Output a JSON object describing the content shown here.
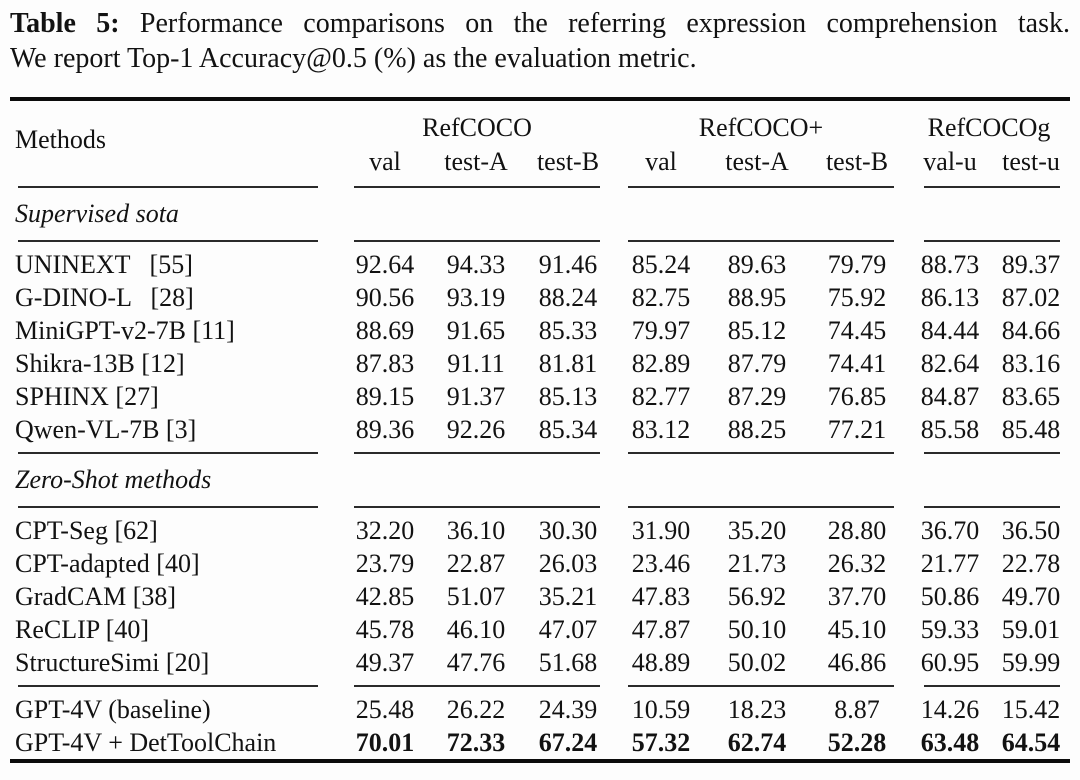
{
  "caption": {
    "label": "Table 5:",
    "line1": "Performance comparisons on the referring expression comprehension task.",
    "line2": "We report Top-1 Accuracy@0.5 (%) as the evaluation metric."
  },
  "table": {
    "methods_header": "Methods",
    "groups": [
      {
        "label": "RefCOCO",
        "cols": [
          "val",
          "test-A",
          "test-B"
        ]
      },
      {
        "label": "RefCOCO+",
        "cols": [
          "val",
          "test-A",
          "test-B"
        ]
      },
      {
        "label": "RefCOCOg",
        "cols": [
          "val-u",
          "test-u"
        ]
      }
    ],
    "sections": [
      {
        "label": "Supervised sota",
        "rows": [
          {
            "method": "UNINEXT  [55]",
            "values": [
              "92.64",
              "94.33",
              "91.46",
              "85.24",
              "89.63",
              "79.79",
              "88.73",
              "89.37"
            ]
          },
          {
            "method": "G-DINO-L  [28]",
            "values": [
              "90.56",
              "93.19",
              "88.24",
              "82.75",
              "88.95",
              "75.92",
              "86.13",
              "87.02"
            ]
          },
          {
            "method": "MiniGPT-v2-7B [11]",
            "values": [
              "88.69",
              "91.65",
              "85.33",
              "79.97",
              "85.12",
              "74.45",
              "84.44",
              "84.66"
            ]
          },
          {
            "method": "Shikra-13B [12]",
            "values": [
              "87.83",
              "91.11",
              "81.81",
              "82.89",
              "87.79",
              "74.41",
              "82.64",
              "83.16"
            ]
          },
          {
            "method": "SPHINX [27]",
            "values": [
              "89.15",
              "91.37",
              "85.13",
              "82.77",
              "87.29",
              "76.85",
              "84.87",
              "83.65"
            ]
          },
          {
            "method": "Qwen-VL-7B [3]",
            "values": [
              "89.36",
              "92.26",
              "85.34",
              "83.12",
              "88.25",
              "77.21",
              "85.58",
              "85.48"
            ]
          }
        ]
      },
      {
        "label": "Zero-Shot methods",
        "rows": [
          {
            "method": "CPT-Seg [62]",
            "values": [
              "32.20",
              "36.10",
              "30.30",
              "31.90",
              "35.20",
              "28.80",
              "36.70",
              "36.50"
            ]
          },
          {
            "method": "CPT-adapted [40]",
            "values": [
              "23.79",
              "22.87",
              "26.03",
              "23.46",
              "21.73",
              "26.32",
              "21.77",
              "22.78"
            ]
          },
          {
            "method": "GradCAM [38]",
            "values": [
              "42.85",
              "51.07",
              "35.21",
              "47.83",
              "56.92",
              "37.70",
              "50.86",
              "49.70"
            ]
          },
          {
            "method": "ReCLIP [40]",
            "values": [
              "45.78",
              "46.10",
              "47.07",
              "47.87",
              "50.10",
              "45.10",
              "59.33",
              "59.01"
            ]
          },
          {
            "method": "StructureSimi [20]",
            "values": [
              "49.37",
              "47.76",
              "51.68",
              "48.89",
              "50.02",
              "46.86",
              "60.95",
              "59.99"
            ]
          }
        ]
      },
      {
        "label": null,
        "rows": [
          {
            "method": "GPT-4V (baseline)",
            "values": [
              "25.48",
              "26.22",
              "24.39",
              "10.59",
              "18.23",
              "8.87",
              "14.26",
              "15.42"
            ]
          },
          {
            "method": "GPT-4V + DetToolChain",
            "values": [
              "70.01",
              "72.33",
              "67.24",
              "57.32",
              "62.74",
              "52.28",
              "63.48",
              "64.54"
            ],
            "bold": true
          }
        ]
      }
    ]
  }
}
